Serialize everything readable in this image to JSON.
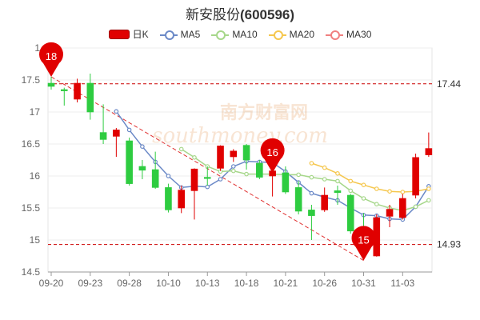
{
  "title": {
    "name": "新安股份",
    "code": "(600596)"
  },
  "legend": [
    {
      "label": "日K",
      "kind": "candle",
      "color": "#e00000"
    },
    {
      "label": "MA5",
      "kind": "line",
      "color": "#6b89c7"
    },
    {
      "label": "MA10",
      "kind": "line",
      "color": "#a6d78a"
    },
    {
      "label": "MA20",
      "kind": "line",
      "color": "#f5c74e"
    },
    {
      "label": "MA30",
      "kind": "line",
      "color": "#f08080"
    }
  ],
  "watermark": {
    "cn": "南方财富网",
    "en": "southmoney.com"
  },
  "chart_data": {
    "type": "candlestick",
    "ylim": [
      14.5,
      18
    ],
    "y_ticks": [
      "14.5",
      "15",
      "15.5",
      "16",
      "16.5",
      "17",
      "17.5",
      "1"
    ],
    "x_ticks": [
      {
        "label": "09-20",
        "index": 0
      },
      {
        "label": "09-23",
        "index": 3
      },
      {
        "label": "09-28",
        "index": 6
      },
      {
        "label": "10-10",
        "index": 9
      },
      {
        "label": "10-13",
        "index": 12
      },
      {
        "label": "10-18",
        "index": 15
      },
      {
        "label": "10-21",
        "index": 18
      },
      {
        "label": "10-26",
        "index": 21
      },
      {
        "label": "10-31",
        "index": 24
      },
      {
        "label": "11-03",
        "index": 27
      }
    ],
    "up_color": "#e00000",
    "down_color": "#2ecc40",
    "candles": [
      {
        "o": 17.45,
        "c": 17.4,
        "h": 17.55,
        "l": 17.35
      },
      {
        "o": 17.35,
        "c": 17.33,
        "h": 17.38,
        "l": 17.1
      },
      {
        "o": 17.2,
        "c": 17.45,
        "h": 17.52,
        "l": 17.15
      },
      {
        "o": 17.45,
        "c": 17.0,
        "h": 17.6,
        "l": 16.88
      },
      {
        "o": 16.68,
        "c": 16.57,
        "h": 17.12,
        "l": 16.5
      },
      {
        "o": 16.62,
        "c": 16.72,
        "h": 16.75,
        "l": 16.3
      },
      {
        "o": 16.55,
        "c": 15.88,
        "h": 16.6,
        "l": 15.85
      },
      {
        "o": 16.15,
        "c": 16.09,
        "h": 16.25,
        "l": 15.95
      },
      {
        "o": 16.1,
        "c": 15.82,
        "h": 16.38,
        "l": 15.8
      },
      {
        "o": 15.82,
        "c": 15.47,
        "h": 15.88,
        "l": 15.43
      },
      {
        "o": 15.5,
        "c": 15.78,
        "h": 15.85,
        "l": 15.42
      },
      {
        "o": 15.77,
        "c": 16.11,
        "h": 16.12,
        "l": 15.32
      },
      {
        "o": 15.98,
        "c": 15.96,
        "h": 16.15,
        "l": 15.85
      },
      {
        "o": 16.12,
        "c": 16.47,
        "h": 16.48,
        "l": 16.08
      },
      {
        "o": 16.3,
        "c": 16.39,
        "h": 16.42,
        "l": 16.22
      },
      {
        "o": 16.48,
        "c": 16.25,
        "h": 16.5,
        "l": 16.1
      },
      {
        "o": 16.2,
        "c": 15.98,
        "h": 16.25,
        "l": 15.95
      },
      {
        "o": 16.0,
        "c": 16.08,
        "h": 16.12,
        "l": 15.68
      },
      {
        "o": 16.05,
        "c": 15.75,
        "h": 16.15,
        "l": 15.72
      },
      {
        "o": 15.82,
        "c": 15.45,
        "h": 15.92,
        "l": 15.4
      },
      {
        "o": 15.47,
        "c": 15.38,
        "h": 15.55,
        "l": 15.0
      },
      {
        "o": 15.47,
        "c": 15.7,
        "h": 15.82,
        "l": 15.44
      },
      {
        "o": 15.77,
        "c": 15.74,
        "h": 15.85,
        "l": 15.55
      },
      {
        "o": 15.7,
        "c": 15.14,
        "h": 15.72,
        "l": 15.1
      },
      {
        "o": 15.0,
        "c": 14.97,
        "h": 15.42,
        "l": 14.93
      },
      {
        "o": 14.75,
        "c": 15.35,
        "h": 15.4,
        "l": 14.74
      },
      {
        "o": 15.37,
        "c": 15.48,
        "h": 15.55,
        "l": 15.2
      },
      {
        "o": 15.35,
        "c": 15.65,
        "h": 15.72,
        "l": 15.32
      },
      {
        "o": 15.7,
        "c": 16.29,
        "h": 16.35,
        "l": 15.65
      },
      {
        "o": 16.33,
        "c": 16.43,
        "h": 16.68,
        "l": 16.3
      }
    ],
    "ma": [
      {
        "name": "MA5",
        "color": "#6b89c7",
        "values": [
          null,
          null,
          null,
          null,
          null,
          17.01,
          16.72,
          16.46,
          16.22,
          16.0,
          15.82,
          15.84,
          15.83,
          15.95,
          16.15,
          16.23,
          16.22,
          16.21,
          16.07,
          15.9,
          15.73,
          15.67,
          15.62,
          15.5,
          15.39,
          15.38,
          15.33,
          15.32,
          15.52,
          15.84
        ]
      },
      {
        "name": "MA10",
        "color": "#a6d78a",
        "values": [
          null,
          null,
          null,
          null,
          null,
          null,
          null,
          null,
          null,
          null,
          16.42,
          16.29,
          16.15,
          16.07,
          16.08,
          16.03,
          16.03,
          16.03,
          16.02,
          16.02,
          15.98,
          15.95,
          15.92,
          15.77,
          15.65,
          15.56,
          15.5,
          15.46,
          15.52,
          15.62
        ]
      },
      {
        "name": "MA20",
        "color": "#f5c74e",
        "values": [
          null,
          null,
          null,
          null,
          null,
          null,
          null,
          null,
          null,
          null,
          null,
          null,
          null,
          null,
          null,
          null,
          null,
          null,
          null,
          null,
          16.2,
          16.13,
          16.04,
          15.92,
          15.86,
          15.8,
          15.76,
          15.75,
          15.76,
          15.8
        ]
      },
      {
        "name": "MA30",
        "color": "#f08080",
        "values": []
      }
    ],
    "reference_lines": [
      {
        "value": 17.44,
        "label": "17.44",
        "color": "#cc0000"
      },
      {
        "value": 14.93,
        "label": "14.93",
        "color": "#cc0000"
      }
    ],
    "trendline": {
      "from": {
        "index": 0,
        "value": 17.55
      },
      "to": {
        "index": 24,
        "value": 14.68
      },
      "color": "#e03030"
    },
    "markers": [
      {
        "label": "18",
        "index": 0,
        "value": 17.55,
        "color": "#e00000"
      },
      {
        "label": "16",
        "index": 17,
        "value": 16.05,
        "color": "#e00000"
      },
      {
        "label": "15",
        "index": 24,
        "value": 14.68,
        "color": "#e00000"
      }
    ]
  }
}
